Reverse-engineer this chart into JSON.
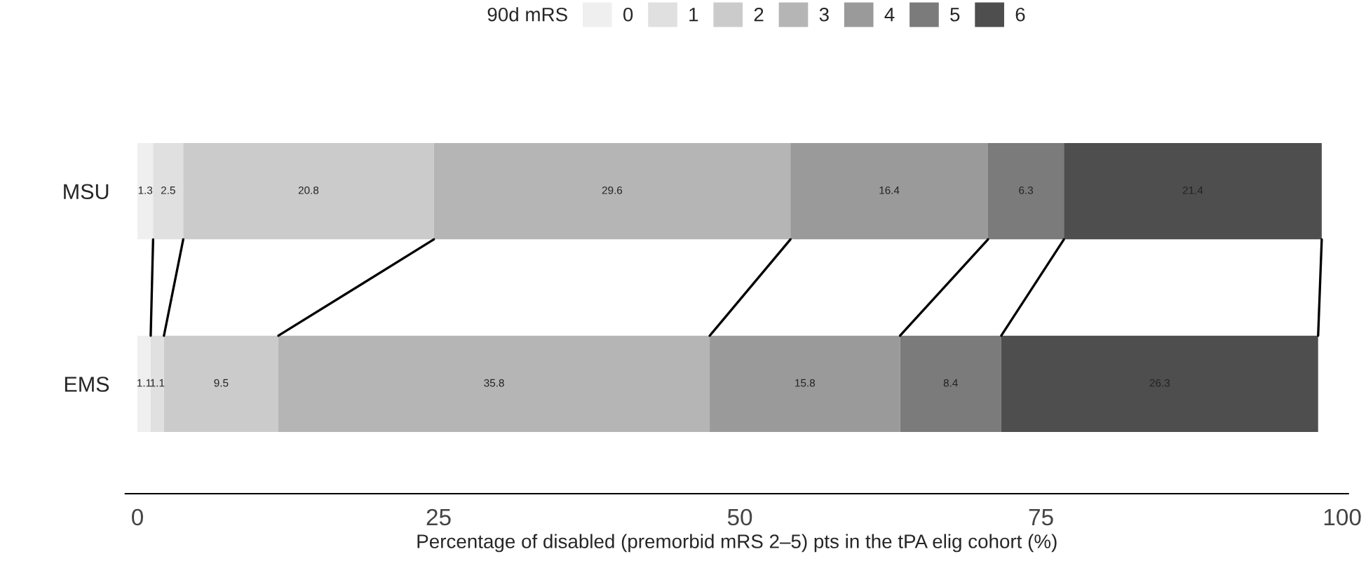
{
  "chart_data": {
    "type": "bar",
    "orientation": "horizontal",
    "stacked": true,
    "categories": [
      "MSU",
      "EMS"
    ],
    "series": [
      {
        "name": "0",
        "color": "#efefef",
        "values": [
          1.3,
          1.1
        ]
      },
      {
        "name": "1",
        "color": "#e0e0e0",
        "values": [
          2.5,
          1.1
        ]
      },
      {
        "name": "2",
        "color": "#cbcbcb",
        "values": [
          20.8,
          9.5
        ]
      },
      {
        "name": "3",
        "color": "#b5b5b5",
        "values": [
          29.6,
          35.8
        ]
      },
      {
        "name": "4",
        "color": "#9a9a9a",
        "values": [
          16.4,
          15.8
        ]
      },
      {
        "name": "5",
        "color": "#7b7b7b",
        "values": [
          6.3,
          8.4
        ]
      },
      {
        "name": "6",
        "color": "#4e4e4e",
        "values": [
          21.4,
          26.3
        ]
      }
    ],
    "data_labels": true,
    "legend_title": "90d mRS",
    "legend": "top",
    "xlabel": "Percentage of disabled (premorbid mRS 2–5) pts in the tPA elig cohort (%)",
    "xlim": [
      -1,
      100.5
    ],
    "xticks": [
      0,
      25,
      50,
      75,
      100
    ],
    "grid": false
  }
}
